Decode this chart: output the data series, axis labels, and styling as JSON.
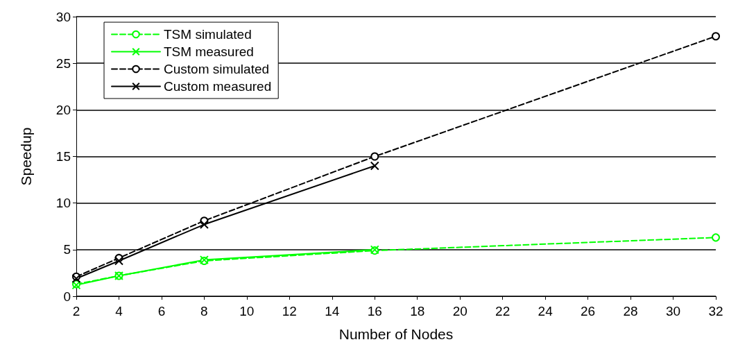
{
  "chart_data": {
    "type": "line",
    "xlabel": "Number of Nodes",
    "ylabel": "Speedup",
    "x": [
      2,
      4,
      8,
      16,
      32
    ],
    "series": [
      {
        "name": "TSM simulated",
        "color": "#00ff00",
        "values": [
          1.3,
          2.2,
          3.8,
          4.9,
          6.3
        ],
        "marker": "circle",
        "line_style": "dashed"
      },
      {
        "name": "TSM measured",
        "color": "#00ff00",
        "values": [
          1.2,
          2.2,
          3.9,
          5.0,
          null
        ],
        "marker": "cross",
        "line_style": "solid"
      },
      {
        "name": "Custom simulated",
        "color": "#000000",
        "values": [
          2.1,
          4.1,
          8.1,
          15.0,
          27.9
        ],
        "marker": "circle",
        "line_style": "dashed"
      },
      {
        "name": "Custom measured",
        "color": "#000000",
        "values": [
          1.9,
          3.8,
          7.7,
          14.0,
          null
        ],
        "marker": "cross",
        "line_style": "solid"
      }
    ],
    "xlim": [
      2,
      32
    ],
    "xticks": [
      2,
      4,
      6,
      8,
      10,
      12,
      14,
      16,
      18,
      20,
      22,
      24,
      26,
      28,
      30,
      32
    ],
    "ylim": [
      0,
      30
    ],
    "yticks": [
      0,
      5,
      10,
      15,
      20,
      25,
      30
    ],
    "grid": "y",
    "legend": "top left"
  }
}
